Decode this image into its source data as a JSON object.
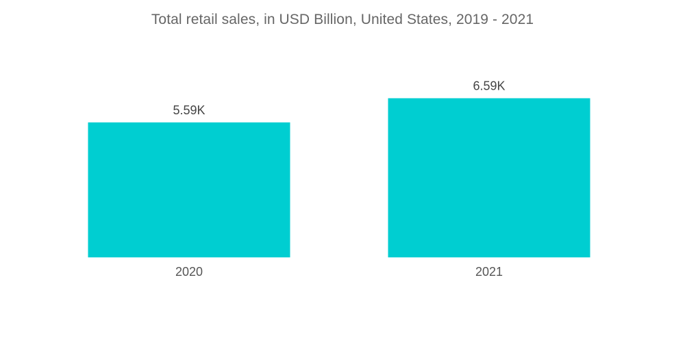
{
  "chart_data": {
    "type": "bar",
    "title": "Total retail sales, in USD Billion, United States, 2019 - 2021",
    "categories": [
      "2020",
      "2021"
    ],
    "values": [
      5590,
      6590
    ],
    "data_labels": [
      "5.59K",
      "6.59K"
    ],
    "xlabel": "",
    "ylabel": "",
    "ylim": [
      0,
      7370
    ],
    "grid": false,
    "legend": "none",
    "bar_color": "#00CED1"
  }
}
